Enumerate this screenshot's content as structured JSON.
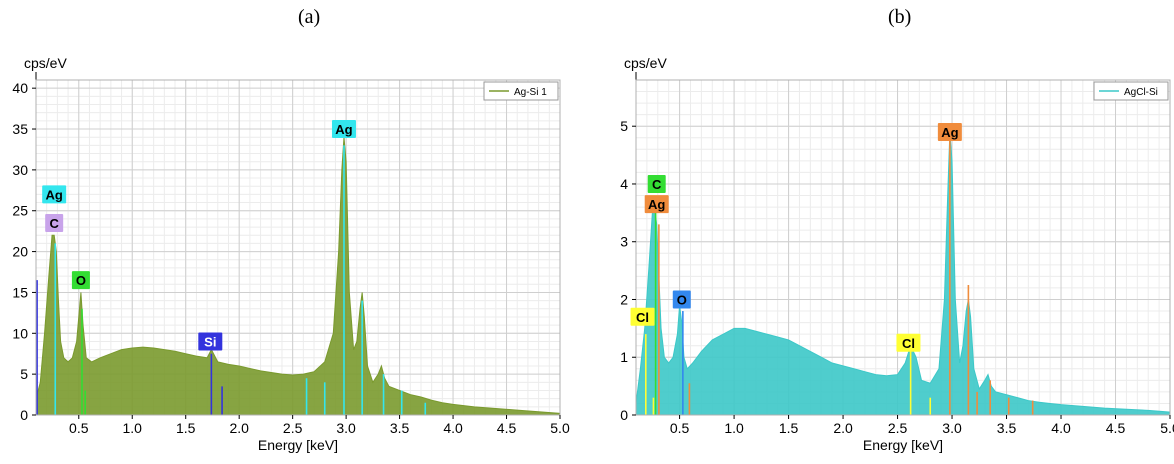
{
  "panels": [
    {
      "label": "(a)",
      "chart_data": {
        "type": "area",
        "ylabel": "cps/eV",
        "xlabel": "Energy [keV]",
        "xlim": [
          0.1,
          5.0
        ],
        "ylim": [
          0,
          41
        ],
        "x_ticks": [
          "0.5",
          "1.0",
          "1.5",
          "2.0",
          "2.5",
          "3.0",
          "3.5",
          "4.0",
          "4.5",
          "5.0"
        ],
        "x_tick_values": [
          0.5,
          1.0,
          1.5,
          2.0,
          2.5,
          3.0,
          3.5,
          4.0,
          4.5,
          5.0
        ],
        "y_ticks": [
          0,
          5,
          10,
          15,
          20,
          25,
          30,
          35,
          40
        ],
        "grid": true,
        "legend_position": "top-right",
        "series": [
          {
            "name": "Ag-Si 1",
            "color": "#7a9a2e",
            "x": [
              0.1,
              0.14,
              0.18,
              0.22,
              0.25,
              0.27,
              0.29,
              0.31,
              0.33,
              0.36,
              0.4,
              0.44,
              0.48,
              0.5,
              0.52,
              0.54,
              0.57,
              0.62,
              0.7,
              0.8,
              0.9,
              1.0,
              1.1,
              1.2,
              1.3,
              1.4,
              1.5,
              1.6,
              1.7,
              1.74,
              1.8,
              1.9,
              2.0,
              2.1,
              2.2,
              2.3,
              2.4,
              2.5,
              2.6,
              2.7,
              2.8,
              2.88,
              2.93,
              2.96,
              2.98,
              3.0,
              3.03,
              3.07,
              3.1,
              3.13,
              3.15,
              3.17,
              3.2,
              3.25,
              3.3,
              3.33,
              3.36,
              3.4,
              3.5,
              3.6,
              3.7,
              3.8,
              3.9,
              4.0,
              4.2,
              4.4,
              4.6,
              4.8,
              5.0
            ],
            "y": [
              2,
              4,
              10,
              17,
              22,
              22,
              20,
              14,
              9,
              7,
              6.5,
              7,
              9,
              12,
              15,
              11,
              7,
              6.5,
              7,
              7.5,
              8,
              8.2,
              8.3,
              8.2,
              8,
              7.8,
              7.5,
              7.2,
              7,
              8,
              6.5,
              6.2,
              6,
              5.7,
              5.4,
              5.2,
              5,
              4.9,
              5,
              5.3,
              6.5,
              10,
              20,
              30,
              34,
              31,
              15,
              8,
              9,
              13,
              15,
              12,
              6,
              4,
              5,
              6,
              4.5,
              3.5,
              3,
              2.5,
              2.2,
              1.8,
              1.5,
              1.3,
              1,
              0.8,
              0.6,
              0.4,
              0.2
            ]
          }
        ],
        "peak_labels": [
          {
            "text": "Ag",
            "x": 0.27,
            "y": 27,
            "color": "#33e6ee"
          },
          {
            "text": "C",
            "x": 0.27,
            "y": 23.5,
            "color": "#c8a3ea"
          },
          {
            "text": "O",
            "x": 0.52,
            "y": 16.5,
            "color": "#33dd33"
          },
          {
            "text": "Si",
            "x": 1.73,
            "y": 9,
            "color": "#3333dd"
          },
          {
            "text": "Ag",
            "x": 2.98,
            "y": 35,
            "color": "#33e6ee"
          }
        ],
        "marker_lines": [
          {
            "x": 0.11,
            "y": 16.5,
            "color": "#3333dd"
          },
          {
            "x": 0.28,
            "y": 21,
            "color": "#33e6ee"
          },
          {
            "x": 0.53,
            "y": 13,
            "color": "#33dd33"
          },
          {
            "x": 0.56,
            "y": 3,
            "color": "#33dd33"
          },
          {
            "x": 1.74,
            "y": 7.5,
            "color": "#3333dd"
          },
          {
            "x": 1.84,
            "y": 3.5,
            "color": "#3333dd"
          },
          {
            "x": 2.63,
            "y": 4.5,
            "color": "#33e6ee"
          },
          {
            "x": 2.8,
            "y": 4,
            "color": "#33e6ee"
          },
          {
            "x": 2.98,
            "y": 33,
            "color": "#33e6ee"
          },
          {
            "x": 3.15,
            "y": 14,
            "color": "#33e6ee"
          },
          {
            "x": 3.35,
            "y": 5,
            "color": "#33e6ee"
          },
          {
            "x": 3.52,
            "y": 3,
            "color": "#33e6ee"
          },
          {
            "x": 3.74,
            "y": 1.5,
            "color": "#33e6ee"
          }
        ]
      }
    },
    {
      "label": "(b)",
      "chart_data": {
        "type": "area",
        "ylabel": "cps/eV",
        "xlabel": "Energy [keV]",
        "xlim": [
          0.1,
          5.0
        ],
        "ylim": [
          0,
          5.8
        ],
        "x_ticks": [
          "0.5",
          "1.0",
          "1.5",
          "2.0",
          "2.5",
          "3.0",
          "3.5",
          "4.0",
          "4.5",
          "5.0"
        ],
        "x_tick_values": [
          0.5,
          1.0,
          1.5,
          2.0,
          2.5,
          3.0,
          3.5,
          4.0,
          4.5,
          5.0
        ],
        "y_ticks": [
          0,
          1,
          2,
          3,
          4,
          5
        ],
        "grid": true,
        "legend_position": "top-right",
        "series": [
          {
            "name": "AgCl-Si",
            "color": "#3cc8c8",
            "x": [
              0.1,
              0.14,
              0.18,
              0.22,
              0.25,
              0.27,
              0.29,
              0.31,
              0.33,
              0.36,
              0.4,
              0.44,
              0.48,
              0.5,
              0.52,
              0.54,
              0.57,
              0.62,
              0.7,
              0.8,
              0.9,
              1.0,
              1.1,
              1.2,
              1.3,
              1.4,
              1.5,
              1.6,
              1.7,
              1.8,
              1.9,
              2.0,
              2.1,
              2.2,
              2.3,
              2.4,
              2.5,
              2.57,
              2.62,
              2.67,
              2.72,
              2.8,
              2.88,
              2.93,
              2.96,
              2.98,
              3.0,
              3.03,
              3.07,
              3.1,
              3.13,
              3.15,
              3.17,
              3.2,
              3.25,
              3.3,
              3.33,
              3.36,
              3.4,
              3.5,
              3.6,
              3.7,
              3.8,
              3.9,
              4.0,
              4.2,
              4.4,
              4.6,
              4.8,
              5.0
            ],
            "y": [
              0.2,
              0.8,
              1.5,
              2.6,
              3.5,
              3.6,
              3.3,
              2.4,
              1.5,
              1.0,
              0.9,
              1.0,
              1.4,
              1.9,
              1.6,
              1.0,
              0.8,
              0.9,
              1.1,
              1.3,
              1.4,
              1.5,
              1.5,
              1.45,
              1.4,
              1.35,
              1.3,
              1.2,
              1.1,
              1.0,
              0.9,
              0.85,
              0.8,
              0.75,
              0.7,
              0.68,
              0.7,
              0.9,
              1.2,
              1.0,
              0.6,
              0.55,
              0.8,
              2.0,
              3.8,
              4.9,
              4.4,
              2.0,
              0.9,
              1.2,
              1.8,
              2.0,
              1.7,
              0.8,
              0.45,
              0.6,
              0.7,
              0.5,
              0.4,
              0.35,
              0.3,
              0.25,
              0.22,
              0.2,
              0.18,
              0.15,
              0.12,
              0.1,
              0.08,
              0.05
            ]
          }
        ],
        "peak_labels": [
          {
            "text": "C",
            "x": 0.29,
            "y": 4.0,
            "color": "#33dd33"
          },
          {
            "text": "Ag",
            "x": 0.29,
            "y": 3.65,
            "color": "#f08c3c"
          },
          {
            "text": "Cl",
            "x": 0.16,
            "y": 1.7,
            "color": "#ffff33"
          },
          {
            "text": "O",
            "x": 0.52,
            "y": 2.0,
            "color": "#3388ee"
          },
          {
            "text": "Cl",
            "x": 2.6,
            "y": 1.25,
            "color": "#ffff33"
          },
          {
            "text": "Ag",
            "x": 2.98,
            "y": 4.9,
            "color": "#f08c3c"
          }
        ],
        "marker_lines": [
          {
            "x": 0.19,
            "y": 1.4,
            "color": "#ffff33"
          },
          {
            "x": 0.26,
            "y": 0.3,
            "color": "#ffff33"
          },
          {
            "x": 0.28,
            "y": 3.5,
            "color": "#33dd33"
          },
          {
            "x": 0.31,
            "y": 3.3,
            "color": "#f08c3c"
          },
          {
            "x": 0.53,
            "y": 1.8,
            "color": "#3388ee"
          },
          {
            "x": 0.59,
            "y": 0.55,
            "color": "#f08c3c"
          },
          {
            "x": 2.62,
            "y": 1.1,
            "color": "#ffff33"
          },
          {
            "x": 2.8,
            "y": 0.3,
            "color": "#ffff33"
          },
          {
            "x": 2.98,
            "y": 4.8,
            "color": "#f08c3c"
          },
          {
            "x": 3.15,
            "y": 2.25,
            "color": "#f08c3c"
          },
          {
            "x": 3.23,
            "y": 0.4,
            "color": "#f08c3c"
          },
          {
            "x": 3.35,
            "y": 0.6,
            "color": "#f08c3c"
          },
          {
            "x": 3.52,
            "y": 0.3,
            "color": "#f08c3c"
          },
          {
            "x": 3.74,
            "y": 0.25,
            "color": "#f08c3c"
          }
        ]
      }
    }
  ]
}
